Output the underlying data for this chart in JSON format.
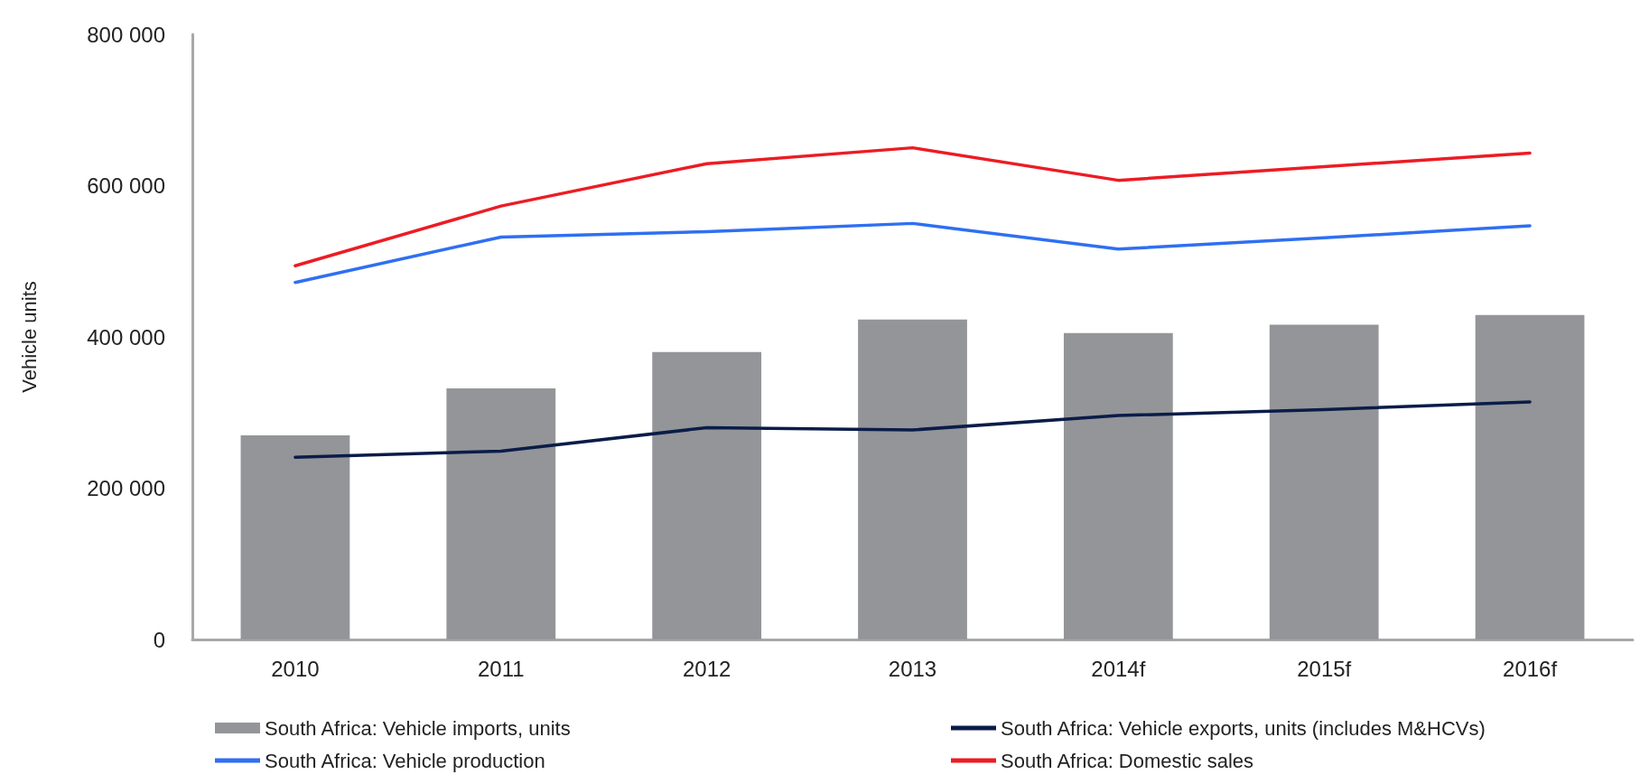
{
  "chart_data": {
    "type": "bar",
    "ylabel": "Vehicle units",
    "categories": [
      "2010",
      "2011",
      "2012",
      "2013",
      "2014f",
      "2015f",
      "2016f"
    ],
    "series": [
      {
        "name": "South Africa: Vehicle imports, units",
        "color": "#939598",
        "values": [
          270000,
          332000,
          380000,
          423000,
          405000,
          416000,
          429000
        ]
      },
      {
        "name": "South Africa: Vehicle exports, units (includes M&HCVs)",
        "type": "line",
        "color": "#0a1c48",
        "values": [
          241000,
          249000,
          280000,
          277000,
          296000,
          304000,
          314000
        ]
      },
      {
        "name": "South Africa: Vehicle production",
        "type": "line",
        "color": "#2f6ff2",
        "values": [
          472000,
          532000,
          539000,
          550000,
          516000,
          531000,
          547000
        ]
      },
      {
        "name": "South Africa: Domestic sales",
        "type": "line",
        "color": "#ec1c24",
        "values": [
          494000,
          573000,
          629000,
          650000,
          607000,
          625000,
          643000
        ]
      }
    ],
    "ylim": [
      0,
      800000
    ],
    "yticks": [
      0,
      {
        "value": 200000,
        "label": "200 000"
      },
      {
        "value": 400000,
        "label": "400 000"
      },
      {
        "value": 600000,
        "label": "600 000"
      },
      {
        "value": 800000,
        "label": "800 000"
      }
    ],
    "grid": false,
    "legend": "bottom",
    "marker": "none",
    "line_style": "solid"
  }
}
